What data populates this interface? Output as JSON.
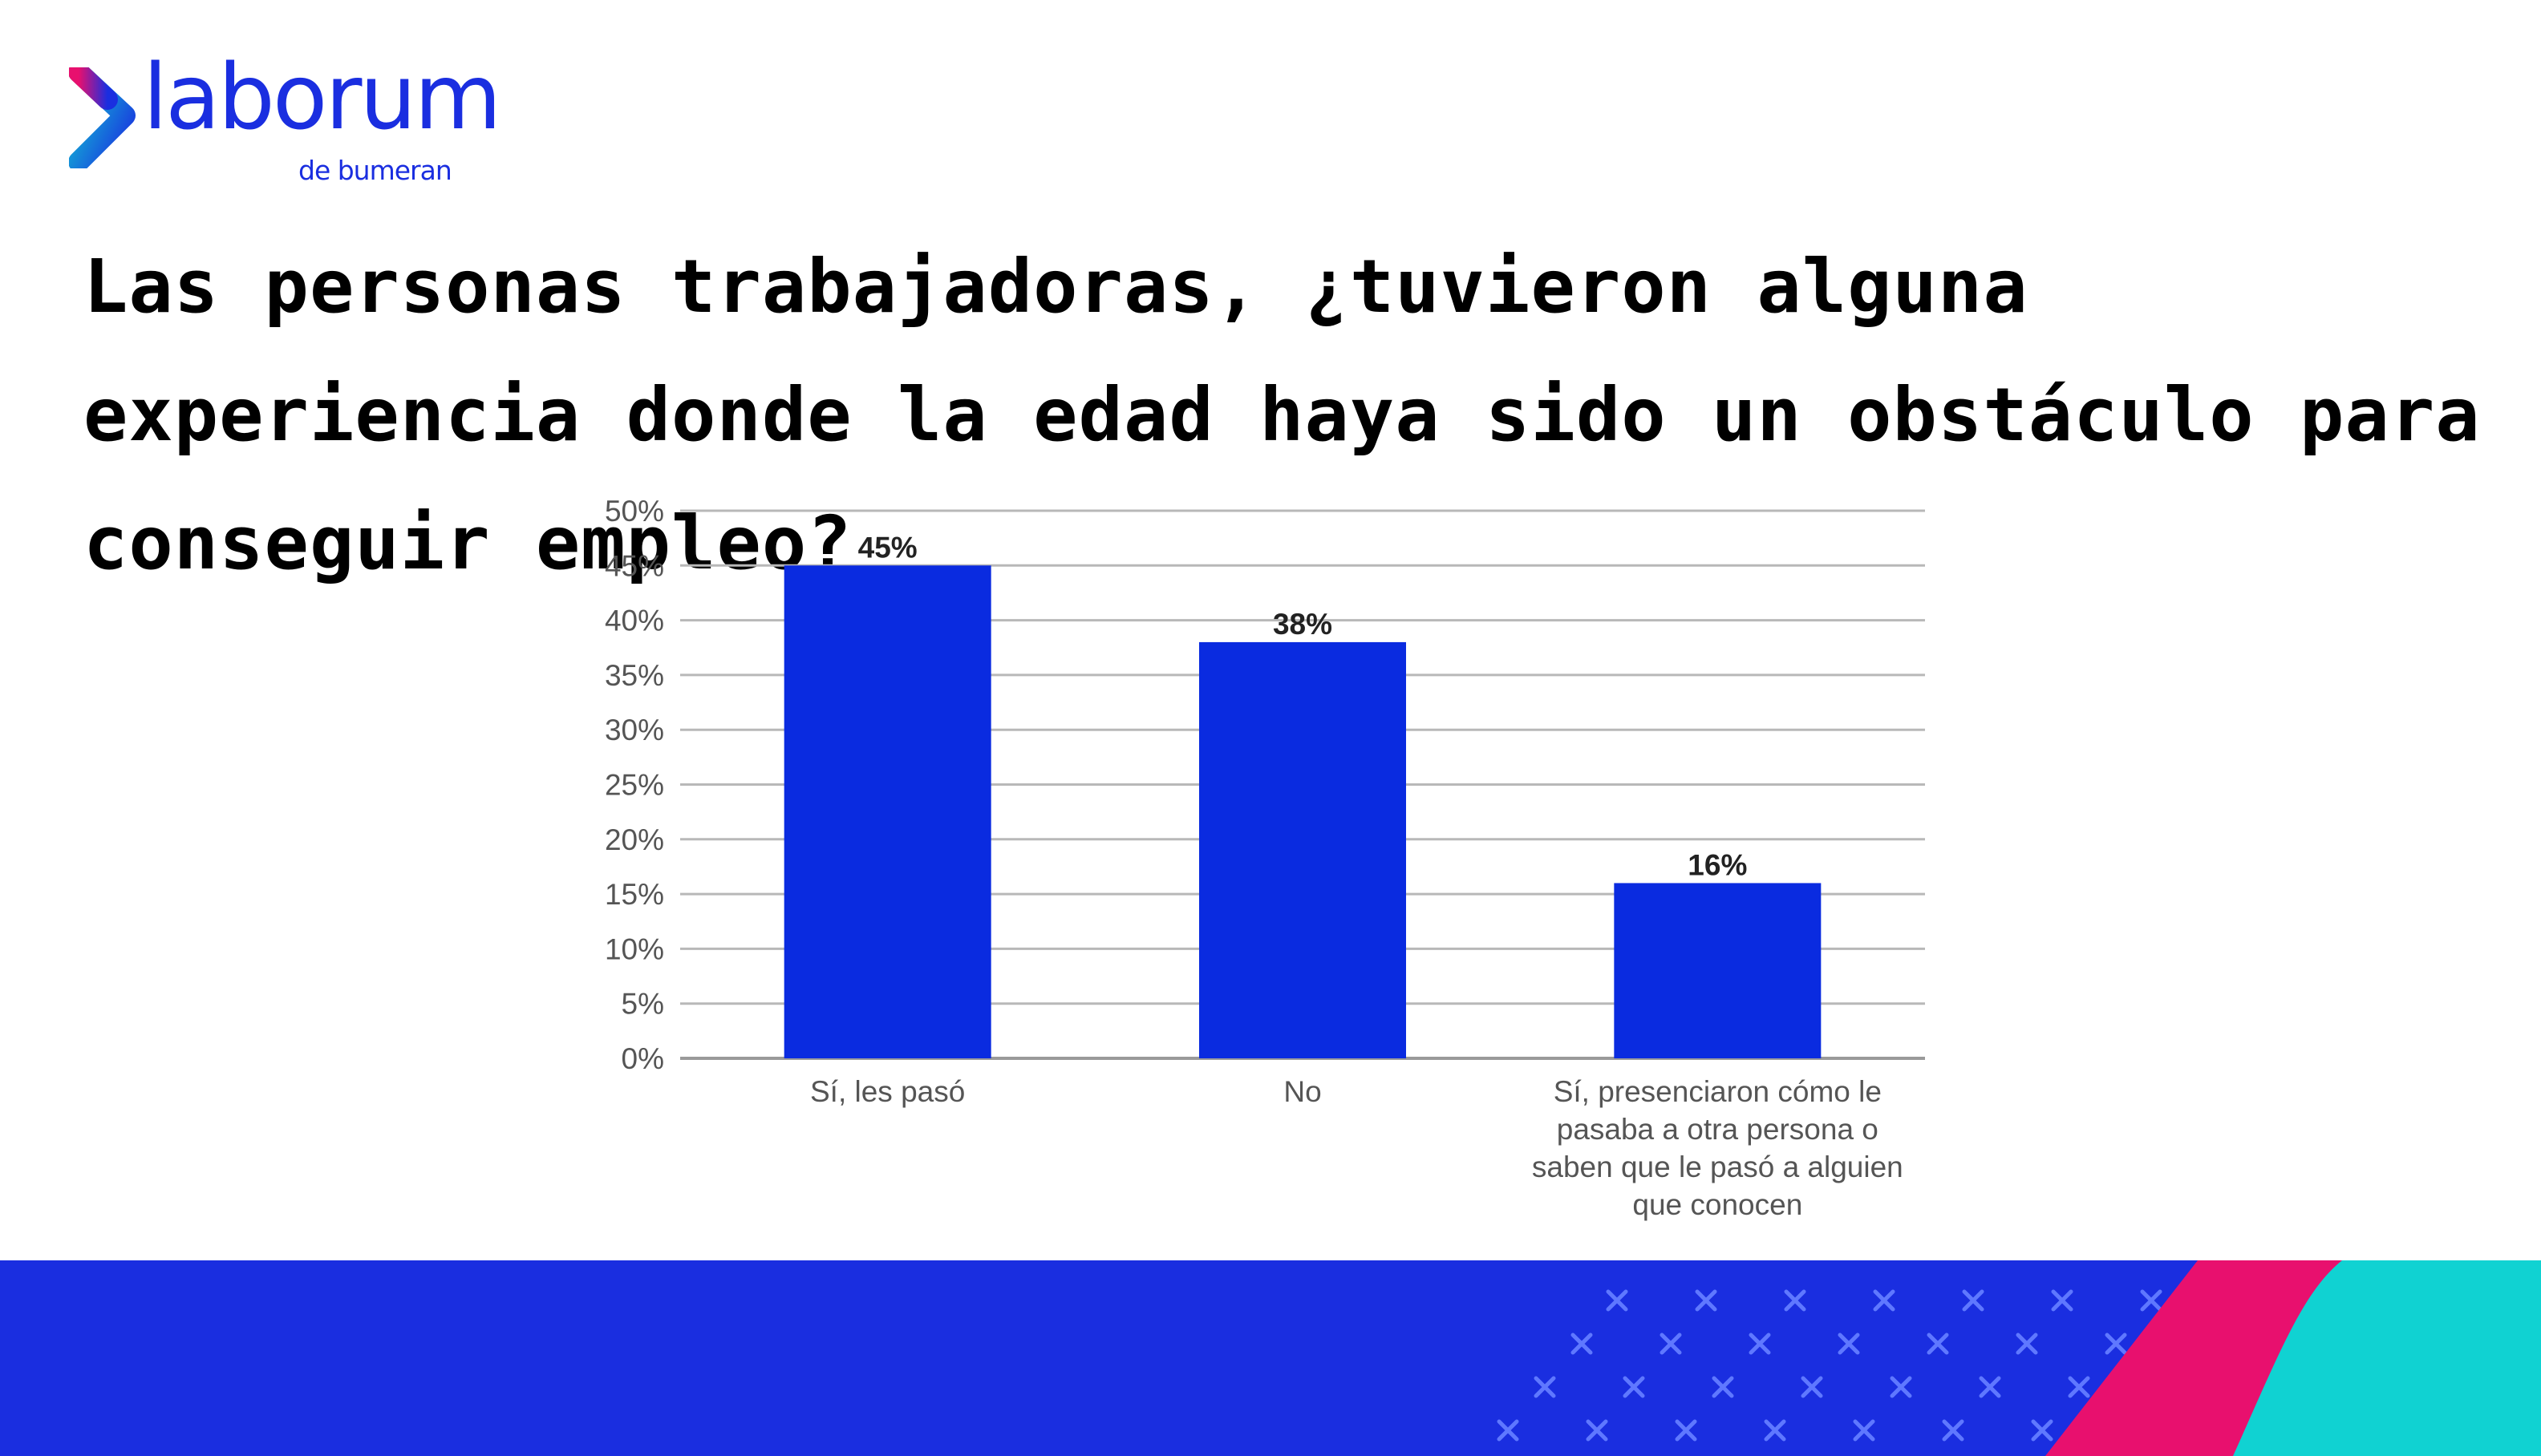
{
  "brand": {
    "name": "laborum",
    "sub": "de bumeran",
    "colors": {
      "blue": "#1a2ee0",
      "pink": "#e8106e",
      "cyan": "#10d2d2"
    }
  },
  "title": "Las personas trabajadoras, ¿tuvieron alguna experiencia donde la edad haya sido un obstáculo para conseguir empleo?",
  "chart_data": {
    "type": "bar",
    "categories": [
      [
        "Sí, les pasó"
      ],
      [
        "No"
      ],
      [
        "Sí, presenciaron cómo le",
        "pasaba a otra persona o",
        "saben que le pasó a alguien",
        "que conocen"
      ]
    ],
    "values": [
      45,
      38,
      16
    ],
    "data_labels": [
      "45%",
      "38%",
      "16%"
    ],
    "ylim": [
      0,
      50
    ],
    "yticks": [
      "0%",
      "5%",
      "10%",
      "15%",
      "20%",
      "25%",
      "30%",
      "35%",
      "40%",
      "45%",
      "50%"
    ],
    "grid": true,
    "bar_color": "#0a2be0",
    "title": "",
    "xlabel": "",
    "ylabel": ""
  }
}
